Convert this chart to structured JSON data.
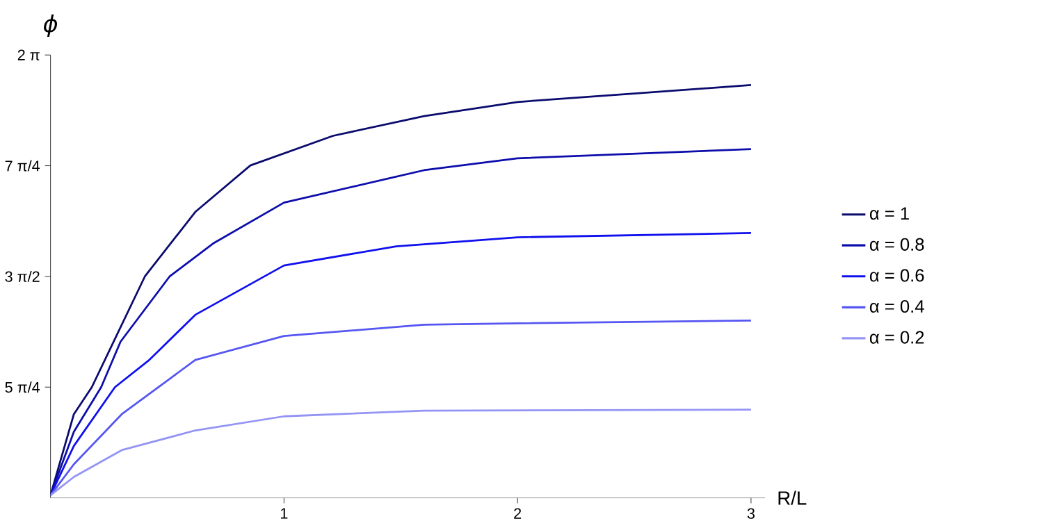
{
  "chart_data": {
    "type": "line",
    "xlabel": "R/L",
    "ylabel": "ϕ",
    "xlim": [
      0,
      3.06
    ],
    "ylim": [
      3.1416,
      6.2832
    ],
    "xticks": [
      1,
      2,
      3
    ],
    "yticks": [
      {
        "value": 3.927,
        "label": "5 π/4"
      },
      {
        "value": 4.7124,
        "label": "3 π/2"
      },
      {
        "value": 5.4978,
        "label": "7 π/4"
      },
      {
        "value": 6.2832,
        "label": "2 π"
      }
    ],
    "legend": "right",
    "grid": false,
    "series": [
      {
        "name": "α = 1",
        "color": "#0b0b6e",
        "x": [
          0,
          0.1,
          0.177,
          0.404,
          0.62,
          0.856,
          1.21,
          1.6,
          2,
          2.5,
          3
        ],
        "values": [
          3.16,
          3.735,
          3.927,
          4.712,
          5.17,
          5.5,
          5.71,
          5.85,
          5.95,
          6.01,
          6.07
        ]
      },
      {
        "name": "α = 0.8",
        "color": "#0d0dab",
        "x": [
          0,
          0.1,
          0.217,
          0.3,
          0.51,
          0.7,
          1.0,
          1.6,
          2,
          3
        ],
        "values": [
          3.16,
          3.61,
          3.927,
          4.25,
          4.712,
          4.95,
          5.236,
          5.466,
          5.55,
          5.616
        ]
      },
      {
        "name": "α = 0.6",
        "color": "#1010ee",
        "x": [
          0,
          0.1,
          0.276,
          0.423,
          0.62,
          1.0,
          1.48,
          2,
          3
        ],
        "values": [
          3.16,
          3.51,
          3.927,
          4.12,
          4.44,
          4.79,
          4.926,
          4.99,
          5.02
        ]
      },
      {
        "name": "α = 0.4",
        "color": "#5656f2",
        "x": [
          0,
          0.1,
          0.305,
          0.62,
          1.0,
          1.6,
          2,
          3
        ],
        "values": [
          3.16,
          3.38,
          3.735,
          4.12,
          4.29,
          4.37,
          4.38,
          4.4
        ]
      },
      {
        "name": "α = 0.2",
        "color": "#9494f5",
        "x": [
          0,
          0.1,
          0.305,
          0.62,
          1.0,
          1.6,
          3
        ],
        "values": [
          3.16,
          3.29,
          3.48,
          3.62,
          3.72,
          3.76,
          3.767
        ]
      }
    ]
  }
}
